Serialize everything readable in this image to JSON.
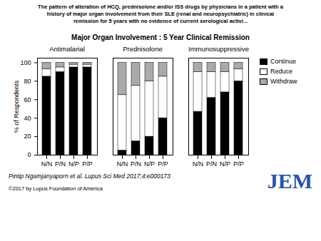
{
  "title": "Major Organ Involvement : 5 Year Clinical Remission",
  "subtitle": "The pattern of alteration of HCQ, prednisolone and/or ISS drugs by physicians in a patient with a\nhistory of major organ involvement from their SLE (renal and neuropsychiatric) in clinical\nremission for 5 years with no evidence of current serological activi...",
  "annotations": [
    "Pintip Ngamjanyaporn et al. Lupus Sci Med 2017;4:e000173",
    "©2017 by Lupus Foundation of America",
    "JEM"
  ],
  "chart_data": [
    {
      "type": "bar",
      "stacked": true,
      "title": "Antimalarial",
      "categories": [
        "N/N",
        "P/N",
        "N/P",
        "P/P"
      ],
      "series": [
        {
          "name": "Continue",
          "color": "#000000",
          "values": [
            85,
            90,
            95,
            95
          ]
        },
        {
          "name": "Reduce",
          "color": "#ffffff",
          "values": [
            8,
            5,
            3,
            3
          ]
        },
        {
          "name": "Withdraw",
          "color": "#aaaaaa",
          "values": [
            7,
            5,
            2,
            2
          ]
        }
      ],
      "ylabel": "% of Respondents",
      "ylim": [
        0,
        105
      ],
      "yticks": [
        0,
        20,
        40,
        60,
        80,
        100
      ]
    },
    {
      "type": "bar",
      "stacked": true,
      "title": "Prednisolone",
      "categories": [
        "N/N",
        "P/N",
        "N/P",
        "P/P"
      ],
      "series": [
        {
          "name": "Continue",
          "color": "#000000",
          "values": [
            5,
            15,
            20,
            40
          ]
        },
        {
          "name": "Reduce",
          "color": "#ffffff",
          "values": [
            60,
            60,
            60,
            45
          ]
        },
        {
          "name": "Withdraw",
          "color": "#aaaaaa",
          "values": [
            35,
            25,
            20,
            15
          ]
        }
      ],
      "ylim": [
        0,
        105
      ],
      "yticks": [
        0,
        20,
        40,
        60,
        80,
        100
      ],
      "tick_labels": "x"
    },
    {
      "type": "bar",
      "stacked": true,
      "title": "Immunosuppressive",
      "categories": [
        "N/N",
        "P/N",
        "N/P",
        "P/P"
      ],
      "series": [
        {
          "name": "Continue",
          "color": "#000000",
          "values": [
            47,
            62,
            68,
            80
          ]
        },
        {
          "name": "Reduce",
          "color": "#ffffff",
          "values": [
            43,
            28,
            22,
            13
          ]
        },
        {
          "name": "Withdraw",
          "color": "#aaaaaa",
          "values": [
            10,
            10,
            10,
            7
          ]
        }
      ],
      "ylim": [
        0,
        105
      ],
      "yticks": [
        0,
        20,
        40,
        60,
        80,
        100
      ],
      "tick_labels": "x",
      "legend": "right"
    }
  ]
}
